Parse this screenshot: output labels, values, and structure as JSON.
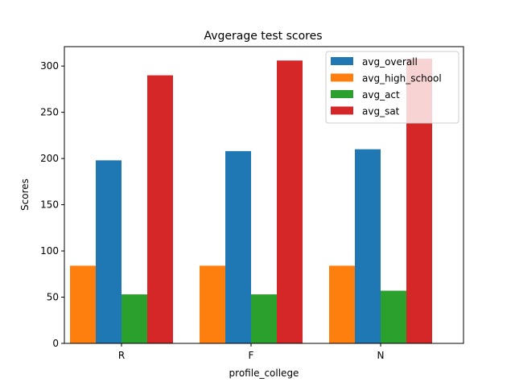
{
  "chart_data": {
    "type": "bar",
    "title": "Avgerage test scores",
    "xlabel": "profile_college",
    "ylabel": "Scores",
    "categories": [
      "R",
      "F",
      "N"
    ],
    "ylim": [
      0,
      321
    ],
    "yticks": [
      0,
      50,
      100,
      150,
      200,
      250,
      300
    ],
    "grid": false,
    "legend_position": "top-right",
    "series": [
      {
        "name": "avg_high_school",
        "color": "#ff7f0e",
        "values": [
          84,
          84,
          84
        ]
      },
      {
        "name": "avg_overall",
        "color": "#1f77b4",
        "values": [
          198,
          208,
          210
        ]
      },
      {
        "name": "avg_act",
        "color": "#2ca02c",
        "values": [
          53,
          53,
          57
        ]
      },
      {
        "name": "avg_sat",
        "color": "#d62728",
        "values": [
          290,
          306,
          308
        ]
      }
    ],
    "legend_order": [
      "avg_overall",
      "avg_high_school",
      "avg_act",
      "avg_sat"
    ]
  }
}
